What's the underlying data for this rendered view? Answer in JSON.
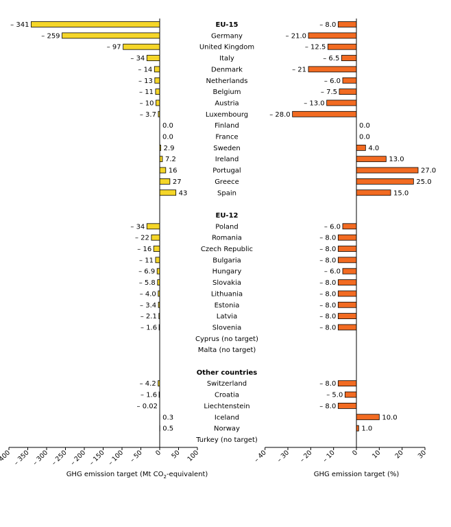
{
  "chart_data": [
    {
      "type": "bar",
      "orientation": "horizontal",
      "xlabel": "GHG emission target (Mt CO2-equivalent)",
      "xlim": [
        -400,
        100
      ],
      "ticks": [
        -400,
        -350,
        -300,
        -250,
        -200,
        -150,
        -100,
        -50,
        0,
        50,
        100
      ],
      "tick_labels": [
        "– 400",
        "– 350",
        "– 300",
        "– 250",
        "– 200",
        "– 150",
        "– 100",
        "– 50",
        "0",
        "50",
        "100"
      ],
      "bar_color": "#f5d629",
      "rows": [
        {
          "kind": "header",
          "label": "EU-15"
        },
        {
          "label": "Germany",
          "value": -259,
          "text": "– 259"
        },
        {
          "label": "United Kingdom",
          "value": -97,
          "text": "– 97"
        },
        {
          "label": "Italy",
          "value": -34,
          "text": "– 34"
        },
        {
          "label": "Denmark",
          "value": -14,
          "text": "– 14"
        },
        {
          "label": "Netherlands",
          "value": -13,
          "text": "– 13"
        },
        {
          "label": "Belgium",
          "value": -11,
          "text": "– 11"
        },
        {
          "label": "Austria",
          "value": -10,
          "text": "– 10"
        },
        {
          "label": "Luxembourg",
          "value": -3.7,
          "text": "– 3.7"
        },
        {
          "label": "Finland",
          "value": 0,
          "text": "0.0"
        },
        {
          "label": "France",
          "value": 0,
          "text": "0.0"
        },
        {
          "label": "Sweden",
          "value": 2.9,
          "text": "2.9"
        },
        {
          "label": "Ireland",
          "value": 7.2,
          "text": "7.2"
        },
        {
          "label": "Portugal",
          "value": 16,
          "text": "16"
        },
        {
          "label": "Greece",
          "value": 27,
          "text": "27"
        },
        {
          "label": "Spain",
          "value": 43,
          "text": "43"
        },
        {
          "kind": "gap"
        },
        {
          "kind": "header",
          "label": "EU-12"
        },
        {
          "label": "Poland",
          "value": -34,
          "text": "– 34"
        },
        {
          "label": "Romania",
          "value": -22,
          "text": "– 22"
        },
        {
          "label": "Czech Republic",
          "value": -16,
          "text": "– 16"
        },
        {
          "label": "Bulgaria",
          "value": -11,
          "text": "– 11"
        },
        {
          "label": "Hungary",
          "value": -6.9,
          "text": "– 6.9"
        },
        {
          "label": "Slovakia",
          "value": -5.8,
          "text": "– 5.8"
        },
        {
          "label": "Lithuania",
          "value": -4.0,
          "text": "– 4.0"
        },
        {
          "label": "Estonia",
          "value": -3.4,
          "text": "– 3.4"
        },
        {
          "label": "Latvia",
          "value": -2.1,
          "text": "– 2.1"
        },
        {
          "label": "Slovenia",
          "value": -1.6,
          "text": "– 1.6"
        },
        {
          "label": "Cyprus (no target)",
          "value": null,
          "text": ""
        },
        {
          "label": "Malta (no target)",
          "value": null,
          "text": ""
        },
        {
          "kind": "gap"
        },
        {
          "kind": "header",
          "label": "Other countries"
        },
        {
          "label": "Switzerland",
          "value": -4.2,
          "text": "– 4.2"
        },
        {
          "label": "Croatia",
          "value": -1.6,
          "text": "– 1.6"
        },
        {
          "label": "Liechtenstein",
          "value": -0.02,
          "text": "– 0.02"
        },
        {
          "label": "Iceland",
          "value": 0.3,
          "text": "0.3"
        },
        {
          "label": "Norway",
          "value": 0.5,
          "text": "0.5"
        },
        {
          "label": "Turkey (no target)",
          "value": null,
          "text": ""
        }
      ],
      "first_row_value": -341,
      "first_row_text": "– 341"
    },
    {
      "type": "bar",
      "orientation": "horizontal",
      "xlabel": "GHG emission target (%)",
      "xlim": [
        -40,
        30
      ],
      "ticks": [
        -40,
        -30,
        -20,
        -10,
        0,
        10,
        20,
        30
      ],
      "tick_labels": [
        "– 40",
        "– 30",
        "– 20",
        "– 10",
        "0",
        "10",
        "20",
        "30"
      ],
      "bar_color": "#f26b22",
      "values": [
        -8.0,
        -21.0,
        -12.5,
        -6.5,
        -21,
        -6.0,
        -7.5,
        -13.0,
        -28.0,
        0.0,
        0.0,
        4.0,
        13.0,
        27.0,
        25.0,
        15.0,
        null,
        null,
        -6.0,
        -8.0,
        -8.0,
        -8.0,
        -6.0,
        -8.0,
        -8.0,
        -8.0,
        -8.0,
        -8.0,
        null,
        null,
        null,
        null,
        -8.0,
        -5.0,
        -8.0,
        10.0,
        1.0,
        null
      ],
      "texts": [
        "– 8.0",
        "– 21.0",
        "– 12.5",
        "– 6.5",
        "– 21",
        "– 6.0",
        "– 7.5",
        "– 13.0",
        "– 28.0",
        "0.0",
        "0.0",
        "4.0",
        "13.0",
        "27.0",
        "25.0",
        "15.0",
        "",
        "",
        "– 6.0",
        "– 8.0",
        "– 8.0",
        "– 8.0",
        "– 6.0",
        "– 8.0",
        "– 8.0",
        "– 8.0",
        "– 8.0",
        "– 8.0",
        "",
        "",
        "",
        "",
        "– 8.0",
        "– 5.0",
        "– 8.0",
        "10.0",
        "1.0",
        ""
      ]
    }
  ]
}
